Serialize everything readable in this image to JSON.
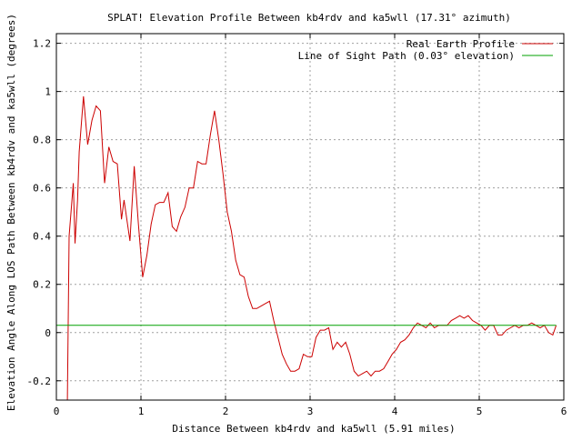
{
  "chart_data": {
    "type": "line",
    "title": "SPLAT! Elevation Profile Between kb4rdv and ka5wll (17.31° azimuth)",
    "xlabel": "Distance Between kb4rdv and ka5wll (5.91 miles)",
    "ylabel": "Elevation Angle Along LOS Path Between kb4rdv and ka5wll (degrees)",
    "xlim": [
      0,
      6
    ],
    "ylim": [
      -0.28,
      1.24
    ],
    "x_ticks": [
      0,
      1,
      2,
      3,
      4,
      5,
      6
    ],
    "x_tick_labels": [
      "0",
      "1",
      "2",
      "3",
      "4",
      "5",
      "6"
    ],
    "y_ticks": [
      -0.2,
      0,
      0.2,
      0.4,
      0.6,
      0.8,
      1,
      1.2
    ],
    "y_tick_labels": [
      "-0.2",
      "0",
      "0.2",
      "0.4",
      "0.6",
      "0.8",
      "1",
      "1.2"
    ],
    "grid": true,
    "legend_position": "top-right",
    "series": [
      {
        "name": "Real Earth Profile",
        "color": "#cc0000",
        "x": [
          0.13,
          0.15,
          0.2,
          0.22,
          0.25,
          0.27,
          0.32,
          0.37,
          0.42,
          0.47,
          0.52,
          0.57,
          0.62,
          0.67,
          0.72,
          0.77,
          0.8,
          0.87,
          0.92,
          0.97,
          1.02,
          1.07,
          1.12,
          1.17,
          1.22,
          1.27,
          1.32,
          1.37,
          1.42,
          1.47,
          1.52,
          1.57,
          1.62,
          1.67,
          1.72,
          1.77,
          1.82,
          1.87,
          1.92,
          1.97,
          2.02,
          2.07,
          2.12,
          2.17,
          2.22,
          2.27,
          2.32,
          2.37,
          2.42,
          2.47,
          2.52,
          2.57,
          2.62,
          2.67,
          2.72,
          2.77,
          2.82,
          2.87,
          2.92,
          2.97,
          3.02,
          3.07,
          3.12,
          3.17,
          3.22,
          3.27,
          3.32,
          3.37,
          3.42,
          3.47,
          3.52,
          3.57,
          3.62,
          3.67,
          3.72,
          3.77,
          3.82,
          3.87,
          3.92,
          3.97,
          4.02,
          4.07,
          4.12,
          4.17,
          4.22,
          4.27,
          4.32,
          4.37,
          4.42,
          4.47,
          4.52,
          4.57,
          4.62,
          4.67,
          4.72,
          4.77,
          4.82,
          4.87,
          4.92,
          4.97,
          5.02,
          5.07,
          5.12,
          5.17,
          5.22,
          5.27,
          5.32,
          5.37,
          5.42,
          5.47,
          5.52,
          5.57,
          5.62,
          5.67,
          5.72,
          5.77,
          5.82,
          5.87,
          5.91
        ],
        "y": [
          -0.28,
          0.4,
          0.62,
          0.37,
          0.55,
          0.75,
          0.98,
          0.78,
          0.88,
          0.94,
          0.92,
          0.62,
          0.77,
          0.71,
          0.7,
          0.47,
          0.55,
          0.38,
          0.69,
          0.45,
          0.23,
          0.32,
          0.45,
          0.53,
          0.54,
          0.54,
          0.58,
          0.44,
          0.42,
          0.48,
          0.52,
          0.6,
          0.6,
          0.71,
          0.7,
          0.7,
          0.82,
          0.92,
          0.8,
          0.66,
          0.5,
          0.42,
          0.3,
          0.24,
          0.23,
          0.15,
          0.1,
          0.1,
          0.11,
          0.12,
          0.13,
          0.05,
          -0.02,
          -0.09,
          -0.13,
          -0.16,
          -0.16,
          -0.15,
          -0.09,
          -0.1,
          -0.1,
          -0.02,
          0.01,
          0.01,
          0.02,
          -0.07,
          -0.04,
          -0.06,
          -0.04,
          -0.09,
          -0.16,
          -0.18,
          -0.17,
          -0.16,
          -0.18,
          -0.16,
          -0.16,
          -0.15,
          -0.12,
          -0.09,
          -0.07,
          -0.04,
          -0.03,
          -0.01,
          0.02,
          0.04,
          0.03,
          0.02,
          0.04,
          0.02,
          0.03,
          0.03,
          0.03,
          0.05,
          0.06,
          0.07,
          0.06,
          0.07,
          0.05,
          0.04,
          0.03,
          0.01,
          0.03,
          0.03,
          -0.01,
          -0.01,
          0.01,
          0.02,
          0.03,
          0.02,
          0.03,
          0.03,
          0.04,
          0.03,
          0.02,
          0.03,
          0.0,
          -0.01,
          0.03
        ],
        "note_y_shape": true
      },
      {
        "name": "Line of Sight Path (0.03° elevation)",
        "color": "#00a000",
        "x": [
          0.0,
          5.91
        ],
        "y": [
          0.03,
          0.03
        ]
      }
    ]
  }
}
